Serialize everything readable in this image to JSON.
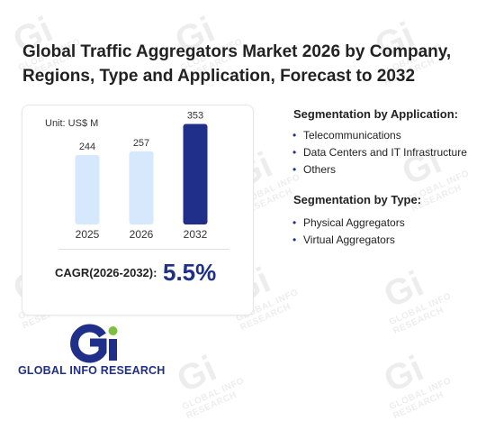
{
  "title": "Global Traffic Aggregators Market 2026 by Company, Regions, Type and Application, Forecast to 2032",
  "watermark": {
    "mark": "Gi",
    "text": "GLOBAL INFO RESEARCH"
  },
  "chart": {
    "unit_label": "Unit: US$ M",
    "cagr_label": "CAGR(2026-2032):",
    "cagr_value": "5.5%"
  },
  "chart_data": {
    "type": "bar",
    "categories": [
      "2025",
      "2026",
      "2032"
    ],
    "values": [
      244,
      257,
      353
    ],
    "unit": "US$ M",
    "colors": [
      "#d6e8fb",
      "#d6e8fb",
      "#1f2f8a"
    ],
    "ylim": [
      0,
      380
    ]
  },
  "segmentation": {
    "application_heading": "Segmentation by Application:",
    "application_items": [
      "Telecommunications",
      "Data Centers and IT Infrastructure",
      "Others"
    ],
    "type_heading": "Segmentation by Type:",
    "type_items": [
      "Physical Aggregators",
      "Virtual Aggregators"
    ]
  },
  "logo": {
    "mark": "Gi",
    "text": "GLOBAL INFO RESEARCH"
  },
  "colors": {
    "accent": "#1f2f8a",
    "light_bar": "#d6e8fb",
    "logo_green": "#7fbf3f"
  }
}
